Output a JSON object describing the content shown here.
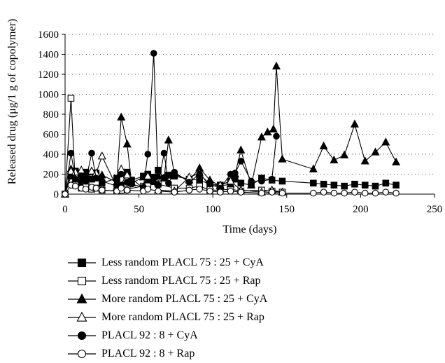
{
  "chart_data": {
    "type": "line",
    "xlabel": "Time (days)",
    "ylabel": "Released drug (μg/1 g of copolymer)",
    "xlim": [
      0,
      250
    ],
    "ylim": [
      0,
      1600
    ],
    "xticks": [
      "0",
      "50",
      "100",
      "150",
      "200",
      "250"
    ],
    "yticks": [
      "0",
      "200",
      "400",
      "600",
      "800",
      "1000",
      "1200",
      "1400",
      "1600"
    ],
    "grid": "horizontal dotted",
    "legend_position": "bottom",
    "series": [
      {
        "name": "Less random PLACL 75 : 25 + CyA",
        "marker": "square",
        "fill": "filled",
        "x": [
          0,
          4,
          7,
          11,
          14,
          18,
          21,
          25,
          35,
          38,
          42,
          45,
          53,
          56,
          60,
          63,
          67,
          70,
          74,
          84,
          91,
          98,
          105,
          112,
          115,
          119,
          126,
          133,
          140,
          147,
          168,
          175,
          182,
          189,
          196,
          203,
          210,
          217,
          224
        ],
        "y": [
          0,
          180,
          230,
          120,
          220,
          150,
          210,
          110,
          160,
          90,
          220,
          140,
          180,
          200,
          170,
          240,
          160,
          190,
          180,
          150,
          140,
          100,
          90,
          130,
          150,
          110,
          90,
          160,
          140,
          130,
          110,
          100,
          90,
          80,
          100,
          90,
          80,
          110,
          90
        ]
      },
      {
        "name": "Less random PLACL 75 : 25 + Rap",
        "marker": "square",
        "fill": "open",
        "x": [
          0,
          4,
          7,
          11,
          14,
          18,
          21,
          25,
          35,
          38,
          42,
          53,
          56,
          63,
          74,
          84,
          91,
          98,
          105,
          112,
          119,
          133,
          140,
          147
        ],
        "y": [
          0,
          960,
          90,
          60,
          70,
          50,
          60,
          40,
          30,
          40,
          50,
          80,
          90,
          100,
          60,
          60,
          80,
          40,
          40,
          50,
          30,
          40,
          30,
          20
        ]
      },
      {
        "name": "More random PLACL 75 : 25 + CyA",
        "marker": "triangle",
        "fill": "filled",
        "x": [
          0,
          4,
          7,
          11,
          14,
          18,
          21,
          25,
          35,
          38,
          42,
          45,
          53,
          56,
          60,
          63,
          67,
          70,
          74,
          84,
          91,
          98,
          105,
          112,
          115,
          119,
          126,
          133,
          137,
          141,
          143,
          147,
          168,
          175,
          182,
          189,
          196,
          203,
          210,
          217,
          224
        ],
        "y": [
          0,
          250,
          150,
          200,
          180,
          220,
          160,
          190,
          120,
          770,
          500,
          110,
          170,
          140,
          130,
          180,
          160,
          540,
          200,
          140,
          260,
          140,
          80,
          100,
          200,
          440,
          90,
          570,
          620,
          650,
          1280,
          350,
          250,
          480,
          340,
          390,
          700,
          330,
          420,
          520,
          320
        ]
      },
      {
        "name": "More random PLACL 75 : 25 + Rap",
        "marker": "triangle",
        "fill": "open",
        "x": [
          0,
          4,
          7,
          11,
          14,
          18,
          21,
          25,
          35,
          38,
          42,
          53,
          56,
          63,
          74,
          84,
          91,
          98,
          105,
          112,
          119,
          133,
          140,
          147
        ],
        "y": [
          0,
          230,
          220,
          240,
          130,
          230,
          210,
          380,
          70,
          250,
          190,
          60,
          180,
          40,
          30,
          170,
          210,
          80,
          90,
          130,
          40,
          20,
          40,
          20
        ]
      },
      {
        "name": "PLACL 92 : 8 + CyA",
        "marker": "circle",
        "fill": "filled",
        "x": [
          0,
          4,
          7,
          11,
          14,
          18,
          21,
          25,
          35,
          38,
          42,
          45,
          53,
          56,
          60,
          63,
          67,
          70,
          74,
          84,
          91,
          98,
          105,
          112,
          115,
          119,
          126,
          133,
          140,
          143
        ],
        "y": [
          0,
          410,
          150,
          180,
          130,
          410,
          160,
          130,
          80,
          200,
          120,
          100,
          70,
          400,
          1410,
          90,
          410,
          110,
          220,
          120,
          200,
          100,
          60,
          200,
          210,
          330,
          130,
          130,
          150,
          580
        ]
      },
      {
        "name": "PLACL 92 : 8 + Rap",
        "marker": "circle",
        "fill": "open",
        "x": [
          0,
          4,
          7,
          11,
          14,
          18,
          21,
          25,
          35,
          38,
          42,
          53,
          56,
          63,
          74,
          84,
          91,
          98,
          105,
          112,
          119,
          133,
          140,
          147,
          168,
          175,
          182,
          189,
          196,
          203,
          210,
          217,
          224
        ],
        "y": [
          0,
          90,
          80,
          60,
          50,
          70,
          60,
          40,
          30,
          60,
          40,
          30,
          50,
          30,
          20,
          40,
          50,
          30,
          20,
          30,
          20,
          10,
          20,
          10,
          10,
          20,
          10,
          10,
          20,
          10,
          10,
          20,
          10
        ]
      }
    ]
  }
}
